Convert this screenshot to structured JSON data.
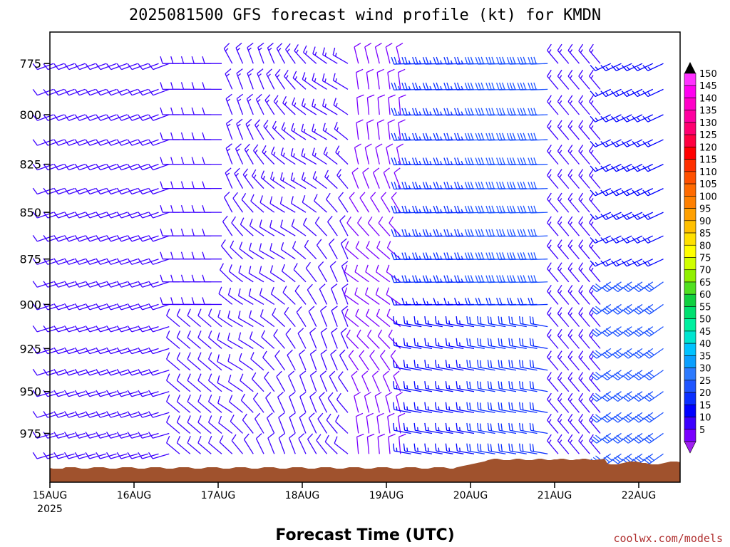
{
  "chart_data": {
    "type": "wind_barb_profile",
    "title": "2025081500 GFS forecast wind profile (kt) for KMDN",
    "xlabel": "Forecast Time (UTC)",
    "ylabel": "",
    "credit": "coolwx.com/models",
    "x_ticks": [
      "15AUG",
      "16AUG",
      "17AUG",
      "18AUG",
      "19AUG",
      "20AUG",
      "21AUG",
      "22AUG"
    ],
    "x_year_label": "2025",
    "y_ticks": [
      775,
      800,
      825,
      850,
      875,
      900,
      925,
      950,
      975
    ],
    "ylim": [
      1005,
      760
    ],
    "y_scale": "log-pressure (hPa)",
    "x_days": 7.25,
    "colorbar": {
      "labels": [
        5,
        10,
        15,
        20,
        25,
        30,
        35,
        40,
        45,
        50,
        55,
        60,
        65,
        70,
        75,
        80,
        85,
        90,
        95,
        100,
        105,
        110,
        115,
        120,
        125,
        130,
        135,
        140,
        145,
        150
      ],
      "colors": [
        "#7a00ff",
        "#3c00ff",
        "#0000ff",
        "#0a2fff",
        "#1f55ff",
        "#2d7bff",
        "#0aa0ff",
        "#00c3ff",
        "#00e5d0",
        "#00f0a0",
        "#00e070",
        "#10d040",
        "#50e020",
        "#90f000",
        "#d0ff00",
        "#ffff00",
        "#ffe000",
        "#ffc000",
        "#ffa000",
        "#ff8000",
        "#ff6a00",
        "#ff5000",
        "#ff3000",
        "#ff0000",
        "#ff0040",
        "#ff0070",
        "#ff00a0",
        "#ff00c8",
        "#ff00f0",
        "#ff33ff"
      ]
    },
    "sample_winds_kt": [
      {
        "time": "15AUG",
        "levels": "775-975",
        "dir_deg": 255,
        "speed_kt": 12
      },
      {
        "time": "17AUG",
        "levels": "775-900",
        "dir_deg": 330,
        "speed_kt": 12
      },
      {
        "time": "19AUG-20AUG",
        "levels": "775-875",
        "dir_deg": 270,
        "speed_kt": 25
      },
      {
        "time": "21AUG-22AUG",
        "levels": "875-975",
        "dir_deg": 240,
        "speed_kt": 28
      }
    ],
    "terrain_color": "#a0522d"
  }
}
